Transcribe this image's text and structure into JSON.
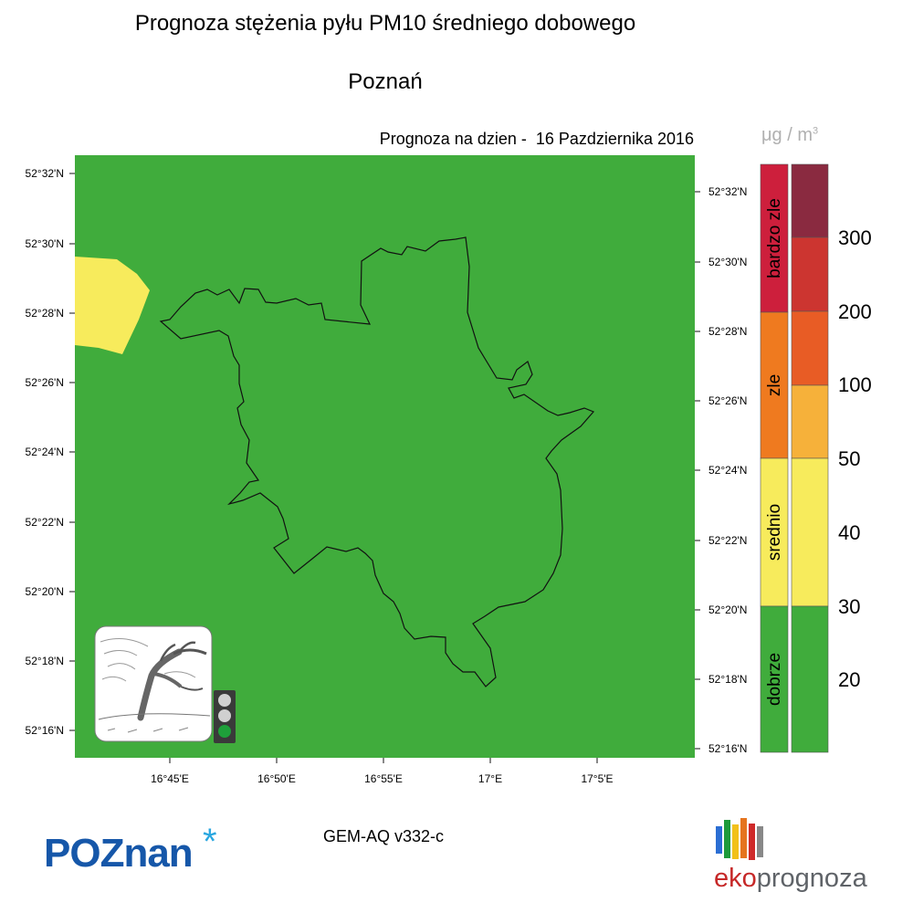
{
  "title": "Prognoza stężenia pyłu PM10 średniego dobowego",
  "subtitle": "Poznań",
  "forecast_label": "Prognoza na dzien -",
  "forecast_date": "16 Pazdziernika 2016",
  "unit": {
    "mu": "μg",
    "slash": "/",
    "m": "m",
    "exp": "3"
  },
  "lat_labels_left": [
    "52°32'N",
    "52°30'N",
    "52°28'N",
    "52°26'N",
    "52°24'N",
    "52°22'N",
    "52°20'N",
    "52°18'N",
    "52°16'N"
  ],
  "lat_labels_right": [
    "52°32'N",
    "52°30'N",
    "52°28'N",
    "52°26'N",
    "52°24'N",
    "52°22'N",
    "52°20'N",
    "52°18'N",
    "52°16'N"
  ],
  "lon_labels": [
    "16°45'E",
    "16°50'E",
    "16°55'E",
    "17°E",
    "17°5'E"
  ],
  "model": "GEM-AQ v332-c",
  "categories": [
    {
      "label": "bardzo zle",
      "color": "#cd1f3c"
    },
    {
      "label": "zle",
      "color": "#ef7a1f"
    },
    {
      "label": "srednio",
      "color": "#f7eb5c"
    },
    {
      "label": "dobrze",
      "color": "#40ac3c"
    }
  ],
  "scale_colors": [
    "#8a2a40",
    "#cc3530",
    "#e85c25",
    "#f6b13a",
    "#f7eb5c",
    "#40ac3c"
  ],
  "scale_values": [
    "300",
    "200",
    "100",
    "50",
    "40",
    "30",
    "20"
  ],
  "map_colors": {
    "background": "#40ac3c",
    "high_zone": "#f7eb5c"
  },
  "traffic_light_active": "green",
  "logos": {
    "poznan_upper": "POZ",
    "poznan_lower": "nan",
    "poznan_star": "*",
    "eko1": "eko",
    "eko2": "prognoza"
  }
}
